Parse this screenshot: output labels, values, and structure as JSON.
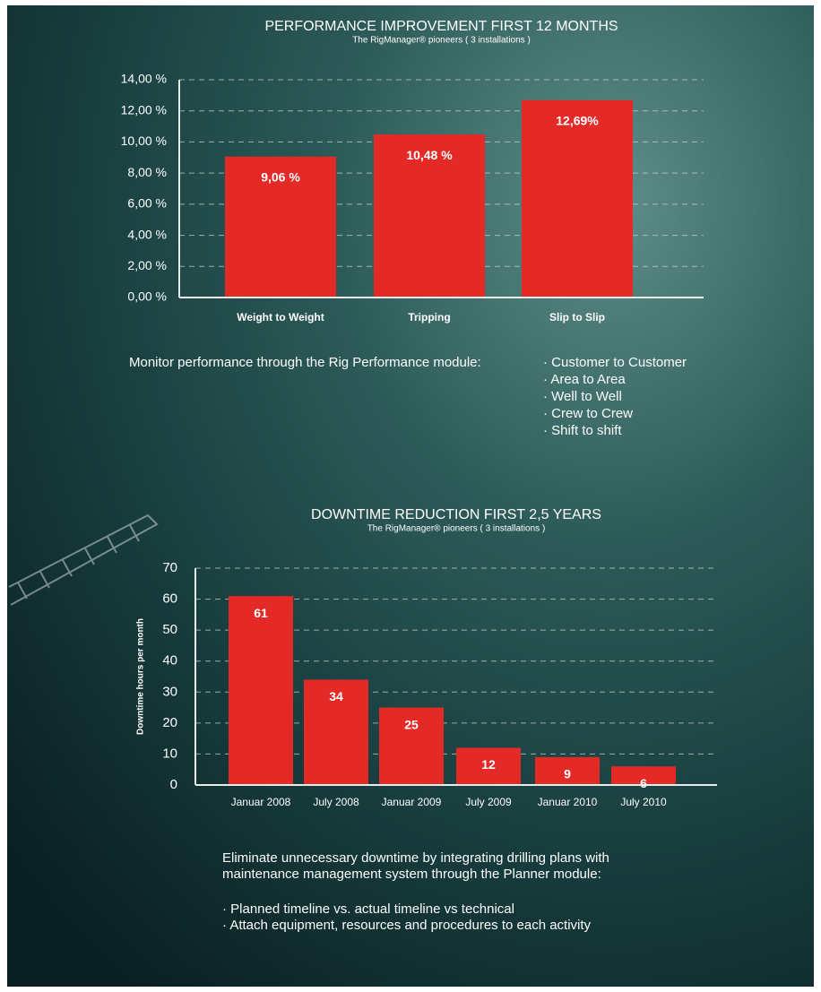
{
  "chart_data": [
    {
      "type": "bar",
      "title": "PERFORMANCE IMPROVEMENT FIRST 12 MONTHS",
      "subtitle": "The RigManager® pioneers ( 3 installations )",
      "categories": [
        "Weight to Weight",
        "Tripping",
        "Slip to Slip"
      ],
      "values": [
        9.06,
        10.48,
        12.69
      ],
      "value_labels": [
        "9,06 %",
        "10,48 %",
        "12,69%"
      ],
      "color": "#e32a27",
      "ylim": [
        0,
        14
      ],
      "yticks": [
        {
          "value": 0,
          "label": "0,00 %"
        },
        {
          "value": 2,
          "label": "2,00 %"
        },
        {
          "value": 4,
          "label": "4,00 %"
        },
        {
          "value": 6,
          "label": "6,00 %"
        },
        {
          "value": 8,
          "label": "8,00 %"
        },
        {
          "value": 10,
          "label": "10,00 %"
        },
        {
          "value": 12,
          "label": "12,00 %"
        },
        {
          "value": 14,
          "label": "14,00 %"
        }
      ],
      "grid": true
    },
    {
      "type": "bar",
      "title": "DOWNTIME REDUCTION FIRST 2,5 YEARS",
      "subtitle": "The RigManager® pioneers ( 3 installations )",
      "ylabel": "Downtime hours per month",
      "categories": [
        "Januar 2008",
        "July 2008",
        "Januar 2009",
        "July 2009",
        "Januar 2010",
        "July 2010"
      ],
      "values": [
        61,
        34,
        25,
        12,
        9,
        6
      ],
      "color": "#e32a27",
      "ylim": [
        0,
        70
      ],
      "yticks": [
        0,
        10,
        20,
        30,
        40,
        50,
        60,
        70
      ],
      "grid": true
    }
  ],
  "sections": [
    {
      "lines": [
        "Monitor performance through the Rig Performance module:"
      ],
      "bullets": [
        "· Customer to Customer",
        "· Area to Area",
        "· Well to Well",
        "· Crew to Crew",
        "· Shift to shift"
      ]
    },
    {
      "lines": [
        "Eliminate unnecessary downtime by integrating drilling plans with",
        "maintenance management system through the Planner module:"
      ],
      "bullets": [
        "· Planned timeline vs. actual timeline vs technical",
        "· Attach equipment, resources and procedures to each activity"
      ]
    }
  ]
}
